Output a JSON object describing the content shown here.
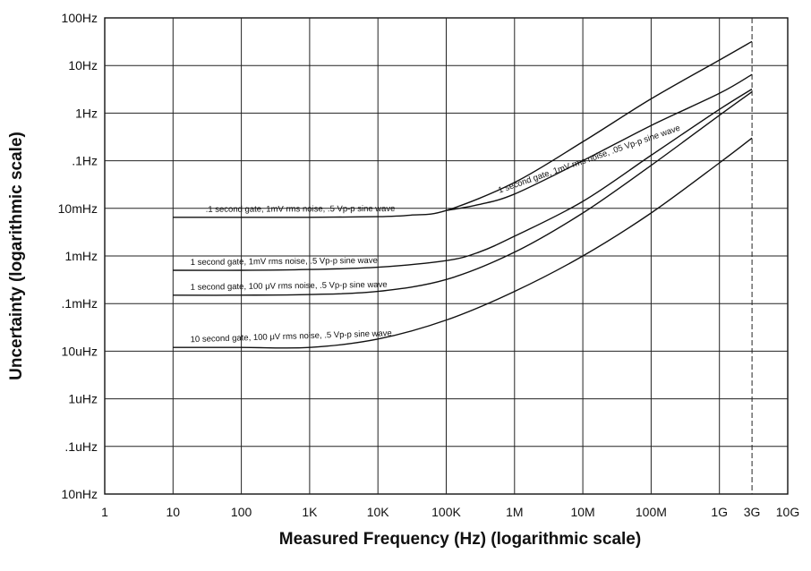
{
  "chart_data": {
    "type": "line",
    "xlabel": "Measured Frequency (Hz) (logarithmic scale)",
    "ylabel": "Uncertainty (logarithmic scale)",
    "x_scale": "log",
    "y_scale": "log",
    "xlim": [
      1,
      10000000000
    ],
    "ylim": [
      1e-08,
      100
    ],
    "grid": true,
    "x_ticks": [
      {
        "value": 1,
        "label": "1"
      },
      {
        "value": 10,
        "label": "10"
      },
      {
        "value": 100,
        "label": "100"
      },
      {
        "value": 1000,
        "label": "1K"
      },
      {
        "value": 10000,
        "label": "10K"
      },
      {
        "value": 100000,
        "label": "100K"
      },
      {
        "value": 1000000,
        "label": "1M"
      },
      {
        "value": 10000000,
        "label": "10M"
      },
      {
        "value": 100000000,
        "label": "100M"
      },
      {
        "value": 1000000000,
        "label": "1G"
      },
      {
        "value": 3000000000,
        "label": "3G"
      },
      {
        "value": 10000000000,
        "label": "10G"
      }
    ],
    "y_ticks": [
      {
        "value": 100,
        "label": "100Hz"
      },
      {
        "value": 10,
        "label": "10Hz"
      },
      {
        "value": 1,
        "label": "1Hz"
      },
      {
        "value": 0.1,
        "label": ".1Hz"
      },
      {
        "value": 0.01,
        "label": "10mHz"
      },
      {
        "value": 0.001,
        "label": "1mHz"
      },
      {
        "value": 0.0001,
        "label": ".1mHz"
      },
      {
        "value": 1e-05,
        "label": "10uHz"
      },
      {
        "value": 1e-06,
        "label": "1uHz"
      },
      {
        "value": 1e-07,
        "label": ".1uHz"
      },
      {
        "value": 1e-08,
        "label": "10nHz"
      }
    ],
    "series": [
      {
        "name": ".1 second gate, 1mV rms noise, .5 Vp-p sine wave",
        "x": [
          10,
          100,
          1000,
          10000,
          30000,
          100000,
          1000000,
          10000000,
          100000000,
          1000000000,
          3000000000
        ],
        "y": [
          0.0065,
          0.0065,
          0.0065,
          0.0067,
          0.0072,
          0.009,
          0.035,
          0.25,
          2.0,
          13,
          32
        ]
      },
      {
        "name": "1 second gate, 1mV rms noise, .05 Vp-p sine wave",
        "x": [
          100000,
          300000,
          1000000,
          10000000,
          100000000,
          1000000000,
          3000000000
        ],
        "y": [
          0.009,
          0.012,
          0.02,
          0.1,
          0.55,
          2.6,
          6.5
        ]
      },
      {
        "name": "1 second gate, 1mV rms noise, .5 Vp-p sine wave",
        "x": [
          10,
          100,
          1000,
          10000,
          100000,
          300000,
          1000000,
          10000000,
          100000000,
          1000000000,
          3000000000
        ],
        "y": [
          0.0005,
          0.0005,
          0.00052,
          0.00058,
          0.0008,
          0.0012,
          0.0026,
          0.014,
          0.13,
          1.2,
          3.2
        ]
      },
      {
        "name": "1 second gate, 100 μV rms noise, .5 Vp-p sine wave",
        "x": [
          10,
          100,
          1000,
          10000,
          100000,
          1000000,
          10000000,
          100000000,
          1000000000,
          3000000000
        ],
        "y": [
          0.00015,
          0.00015,
          0.000155,
          0.00018,
          0.00032,
          0.0012,
          0.008,
          0.08,
          0.9,
          2.8
        ]
      },
      {
        "name": "10 second gate, 100 μV rms noise, .5 Vp-p sine wave",
        "x": [
          10,
          100,
          1000,
          10000,
          100000,
          1000000,
          10000000,
          100000000,
          1000000000,
          3000000000
        ],
        "y": [
          1.2e-05,
          1.2e-05,
          1.2e-05,
          1.8e-05,
          4.5e-05,
          0.00018,
          0.001,
          0.008,
          0.09,
          0.3
        ]
      }
    ]
  }
}
